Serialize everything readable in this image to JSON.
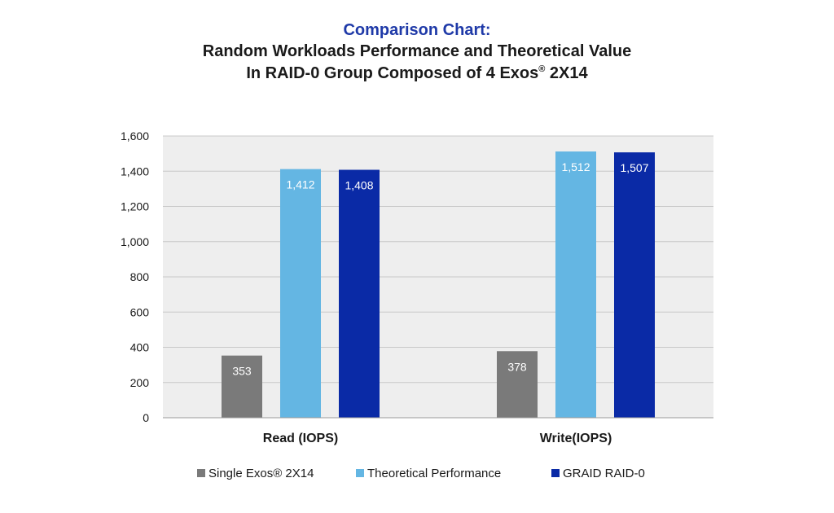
{
  "chart_data": {
    "type": "bar",
    "title": "Comparison Chart:",
    "subtitle_line1": "Random Workloads Performance and Theoretical Value",
    "subtitle_line2_prefix": "In RAID-0 Group Composed of 4 Exos",
    "subtitle_line2_mark": "®",
    "subtitle_line2_suffix": " 2X14",
    "categories": [
      "Read (IOPS)",
      "Write(IOPS)"
    ],
    "series": [
      {
        "name": "Single Exos® 2X14",
        "color": "#7a7a7a",
        "values": [
          353,
          378
        ],
        "labels": [
          "353",
          "378"
        ]
      },
      {
        "name": "Theoretical Performance",
        "color": "#64b6e3",
        "values": [
          1412,
          1512
        ],
        "labels": [
          "1,412",
          "1,512"
        ]
      },
      {
        "name": "GRAID RAID-0",
        "color": "#0a2aa6",
        "values": [
          1408,
          1507
        ],
        "labels": [
          "1,408",
          "1,507"
        ]
      }
    ],
    "ylim": [
      0,
      1600
    ],
    "yticks": [
      0,
      200,
      400,
      600,
      800,
      1000,
      1200,
      1400,
      1600
    ],
    "ytick_labels": [
      "0",
      "200",
      "400",
      "600",
      "800",
      "1,000",
      "1,200",
      "1,400",
      "1,600"
    ],
    "grid": true,
    "plot_background": "#eeeeee",
    "legend_position": "bottom"
  }
}
